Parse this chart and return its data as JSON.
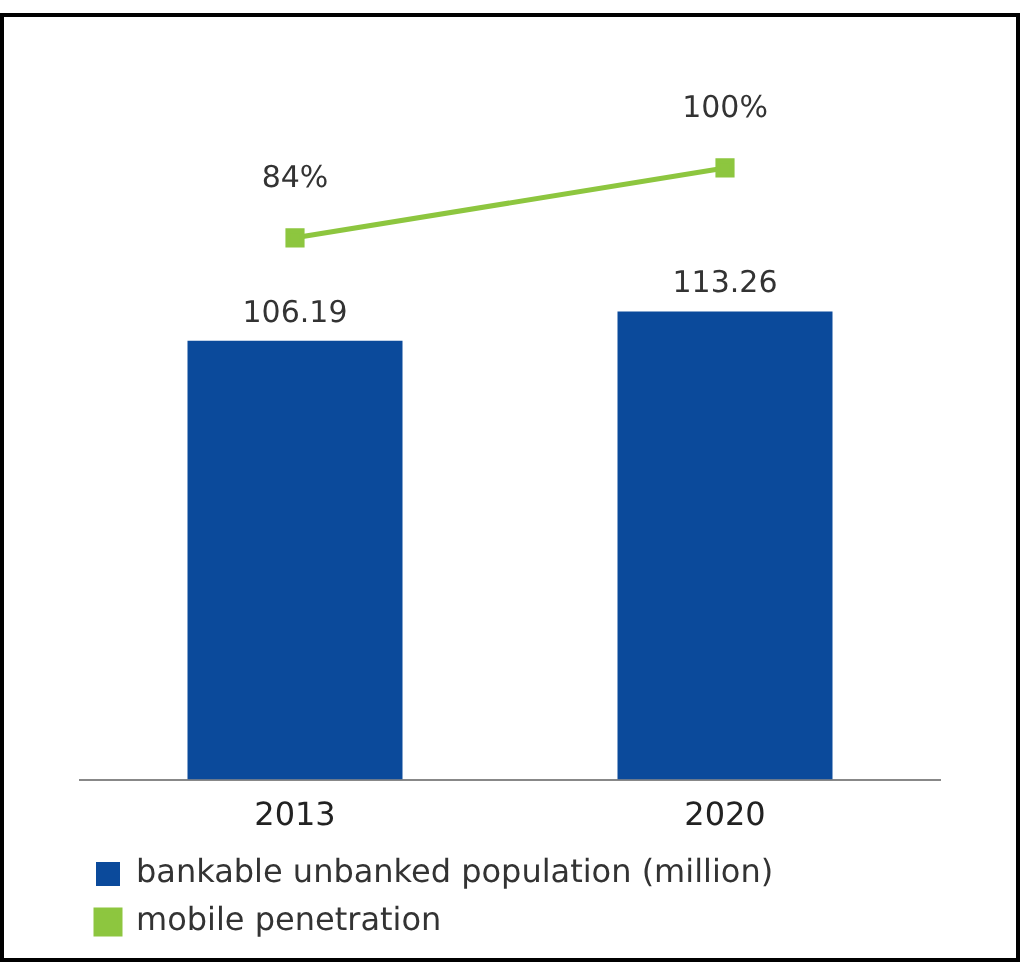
{
  "chart_data": {
    "type": "bar",
    "categories": [
      "2013",
      "2020"
    ],
    "series": [
      {
        "name": "bankable unbanked population (million)",
        "color": "#0b4a9b",
        "values": [
          106.19,
          113.26
        ]
      },
      {
        "name": "mobile penetration",
        "type": "line",
        "axis": "y2",
        "color": "#8dc63f",
        "values": [
          84,
          100
        ],
        "value_labels": [
          "84%",
          "100%"
        ]
      }
    ],
    "data_labels": true,
    "ylim": [
      0,
      185
    ],
    "y2lim": [
      -40,
      135
    ],
    "tick_labels": "x",
    "grid": false,
    "legend": "bottom",
    "marker": "square",
    "line_style": "solid"
  }
}
